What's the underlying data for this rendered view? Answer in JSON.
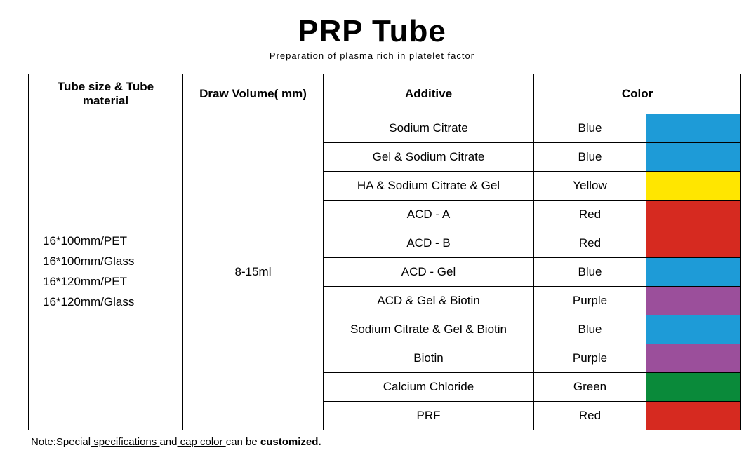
{
  "title": "PRP Tube",
  "subtitle": "Preparation of plasma rich in platelet factor",
  "columns": [
    "Tube size & Tube material",
    "Draw Volume( mm)",
    "Additive",
    "Color"
  ],
  "tube_sizes": [
    "16*100mm/PET",
    "16*100mm/Glass",
    "16*120mm/PET",
    "16*120mm/Glass"
  ],
  "draw_volume": "8-15ml",
  "rows": [
    {
      "additive": "Sodium Citrate",
      "color_name": "Blue",
      "swatch": "#1e9bd7"
    },
    {
      "additive": "Gel & Sodium Citrate",
      "color_name": "Blue",
      "swatch": "#1e9bd7"
    },
    {
      "additive": "HA & Sodium Citrate & Gel",
      "color_name": "Yellow",
      "swatch": "#ffe600"
    },
    {
      "additive": "ACD - A",
      "color_name": "Red",
      "swatch": "#d62a20"
    },
    {
      "additive": "ACD - B",
      "color_name": "Red",
      "swatch": "#d62a20"
    },
    {
      "additive": "ACD - Gel",
      "color_name": "Blue",
      "swatch": "#1e9bd7"
    },
    {
      "additive": "ACD & Gel & Biotin",
      "color_name": "Purple",
      "swatch": "#9b4f9b"
    },
    {
      "additive": "Sodium Citrate & Gel & Biotin",
      "color_name": "Blue",
      "swatch": "#1e9bd7"
    },
    {
      "additive": "Biotin",
      "color_name": "Purple",
      "swatch": "#9b4f9b"
    },
    {
      "additive": "Calcium Chloride",
      "color_name": "Green",
      "swatch": "#0a8a3a"
    },
    {
      "additive": "PRF",
      "color_name": "Red",
      "swatch": "#d62a20"
    }
  ],
  "footnote": {
    "prefix": "Note:Special",
    "u1": " specifications ",
    "mid": "and",
    "u2": " cap color ",
    "mid2": "can be ",
    "bold": "customized."
  }
}
